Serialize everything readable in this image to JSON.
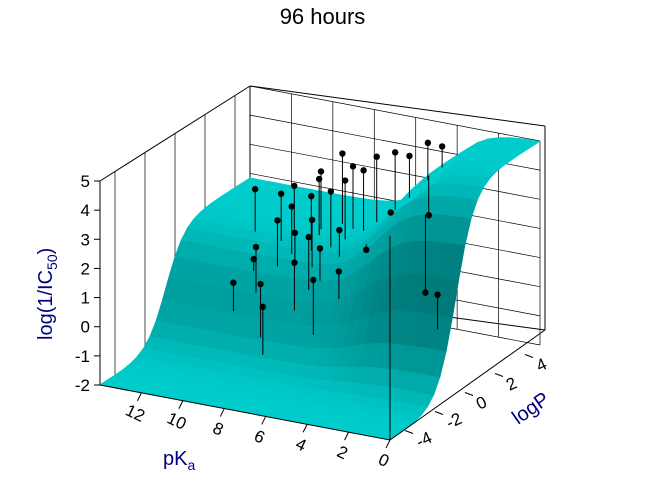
{
  "chart_data": {
    "type": "surface3d",
    "title": "96 hours",
    "axes": {
      "x": {
        "label": "pKa",
        "label_main": "pK",
        "label_sub": "a",
        "ticks": [
          12,
          10,
          8,
          6,
          4,
          2,
          0
        ],
        "range": [
          0,
          14
        ]
      },
      "y": {
        "label": "logP",
        "ticks": [
          -4,
          -2,
          0,
          2,
          4
        ],
        "range": [
          -5,
          5
        ]
      },
      "z": {
        "label": "log(1/IC50)",
        "label_main": "log(1/IC",
        "label_sub": "50",
        "label_end": ")",
        "ticks": [
          -2,
          -1,
          0,
          1,
          2,
          3,
          4,
          5
        ],
        "range": [
          -2,
          5
        ]
      }
    },
    "surface": {
      "color": "#00cccc",
      "low": -2.0,
      "high": 5.0,
      "description_free": true
    },
    "points": [
      {
        "pKa": 9.2,
        "logP": 0.2,
        "z": 2.6
      },
      {
        "pKa": 8.8,
        "logP": 0.6,
        "z": 3.0
      },
      {
        "pKa": 8.5,
        "logP": 0.4,
        "z": 2.2
      },
      {
        "pKa": 8.0,
        "logP": 0.8,
        "z": 3.4
      },
      {
        "pKa": 7.6,
        "logP": 0.3,
        "z": 2.8
      },
      {
        "pKa": 7.2,
        "logP": 1.0,
        "z": 3.6
      },
      {
        "pKa": 7.0,
        "logP": 0.0,
        "z": 2.0
      },
      {
        "pKa": 6.8,
        "logP": 1.4,
        "z": 3.9
      },
      {
        "pKa": 6.5,
        "logP": 0.6,
        "z": 2.5
      },
      {
        "pKa": 6.2,
        "logP": 1.8,
        "z": 4.2
      },
      {
        "pKa": 9.8,
        "logP": -0.4,
        "z": 1.8
      },
      {
        "pKa": 10.2,
        "logP": 0.0,
        "z": 1.2
      },
      {
        "pKa": 9.6,
        "logP": 1.0,
        "z": 3.2
      },
      {
        "pKa": 8.2,
        "logP": 1.6,
        "z": 3.7
      },
      {
        "pKa": 7.8,
        "logP": -0.6,
        "z": 1.6
      },
      {
        "pKa": 7.4,
        "logP": -0.2,
        "z": 2.4
      },
      {
        "pKa": 6.0,
        "logP": 2.4,
        "z": 4.5
      },
      {
        "pKa": 5.4,
        "logP": 2.8,
        "z": 4.6
      },
      {
        "pKa": 5.0,
        "logP": 3.2,
        "z": 4.4
      },
      {
        "pKa": 4.4,
        "logP": 3.6,
        "z": 4.8
      },
      {
        "pKa": 4.0,
        "logP": 4.0,
        "z": 4.6
      },
      {
        "pKa": 3.2,
        "logP": 2.0,
        "z": 3.0
      },
      {
        "pKa": 4.6,
        "logP": 1.4,
        "z": 3.1
      },
      {
        "pKa": 5.2,
        "logP": 0.6,
        "z": 2.0
      },
      {
        "pKa": 2.2,
        "logP": 0.4,
        "z": 1.0
      },
      {
        "pKa": 9.0,
        "logP": -1.2,
        "z": 0.9
      },
      {
        "pKa": 10.6,
        "logP": -0.8,
        "z": 0.6
      },
      {
        "pKa": 8.6,
        "logP": -1.6,
        "z": 0.3
      },
      {
        "pKa": 11.0,
        "logP": 1.2,
        "z": 3.1
      },
      {
        "pKa": 7.0,
        "logP": 2.2,
        "z": 4.1
      },
      {
        "pKa": 6.6,
        "logP": -1.0,
        "z": 1.3
      },
      {
        "pKa": 5.8,
        "logP": -0.4,
        "z": 1.5
      },
      {
        "pKa": 8.4,
        "logP": 2.0,
        "z": 3.8
      },
      {
        "pKa": 9.4,
        "logP": 1.6,
        "z": 3.3
      },
      {
        "pKa": 7.8,
        "logP": 2.6,
        "z": 4.3
      },
      {
        "pKa": 0.6,
        "logP": -1.0,
        "z": 1.6
      }
    ]
  }
}
